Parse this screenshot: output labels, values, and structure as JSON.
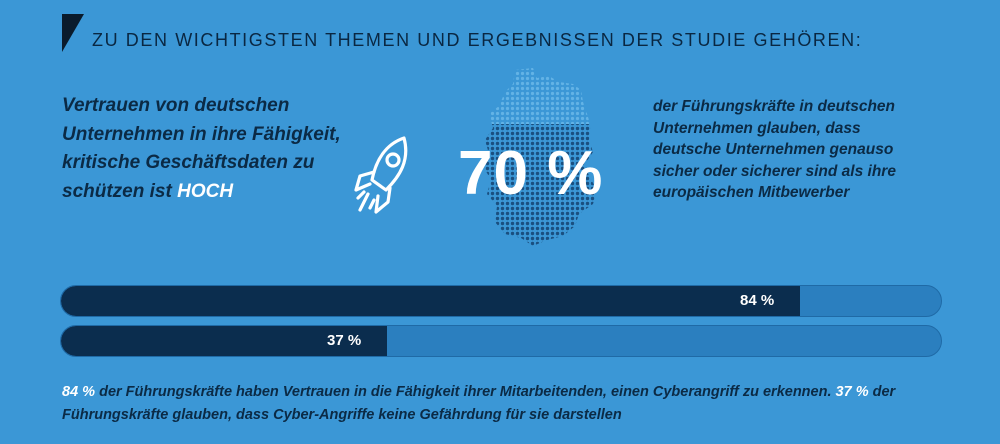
{
  "header": {
    "title": "ZU DEN WICHTIGSTEN THEMEN UND ERGEBNISSEN DER STUDIE GEHÖREN:"
  },
  "left": {
    "line1": "Vertrauen von deutschen",
    "line2": "Unternehmen in ihre Fähigkeit,",
    "line3": "kritische Geschäftsdaten zu",
    "line4_prefix": "schützen ist",
    "highlight": "HOCH"
  },
  "stat": {
    "value": "70 %"
  },
  "right": {
    "line1": "der Führungskräfte in deutschen",
    "line2": "Unternehmen glauben, dass",
    "line3": "deutsche Unternehmen genauso",
    "line4": "sicher oder sicherer sind als ihre",
    "line5": "europäischen Mitbewerber"
  },
  "bars": [
    {
      "label": "84 %",
      "value": 0.84
    },
    {
      "label": "37 %",
      "value": 0.37
    }
  ],
  "caption": {
    "hl1": "84 %",
    "t1": " der Führungskräfte haben Vertrauen in die Fähigkeit ihrer Mitarbeitenden, einen Cyberangriff zu erkennen. ",
    "hl2": "37 %",
    "t2": " der Führungskräfte glauben, dass Cyber-Angriffe keine Gefährdung für sie darstellen"
  },
  "colors": {
    "background": "#3b97d6",
    "bar_fill": "#0b2d4e",
    "bar_track": "#2b7fbf",
    "text_dark": "#0b2a45",
    "highlight": "#ffffff"
  },
  "icons": [
    "corner-triangle-icon",
    "rocket-icon",
    "germany-map-icon"
  ]
}
